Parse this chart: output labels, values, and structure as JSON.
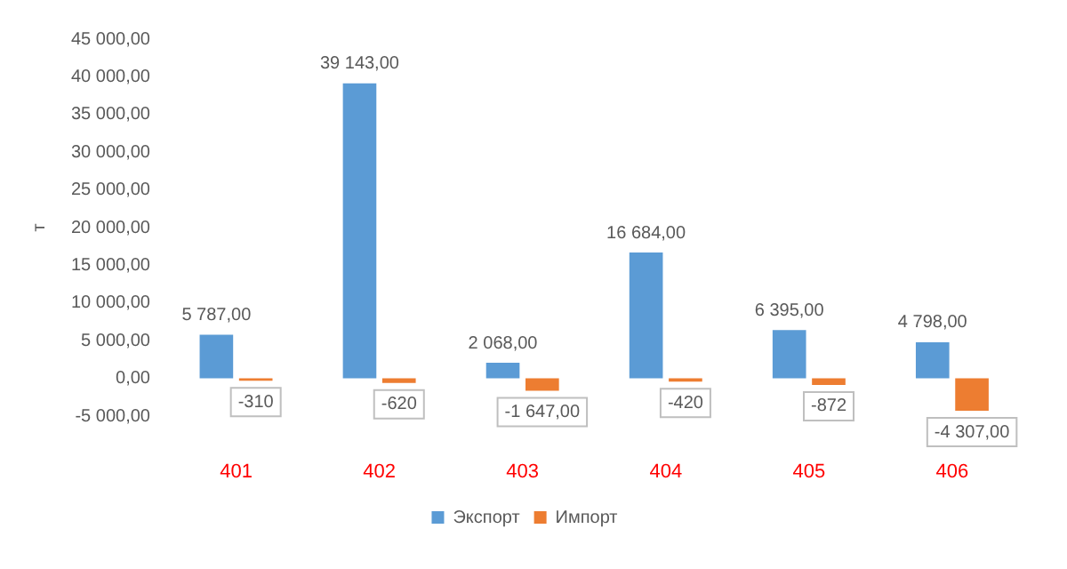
{
  "chart_data": {
    "type": "bar",
    "ylabel": "т",
    "categories": [
      "401",
      "402",
      "403",
      "404",
      "405",
      "406"
    ],
    "series": [
      {
        "name": "Экспорт",
        "color": "#5b9bd5",
        "values": [
          5787,
          39143,
          2068,
          16684,
          6395,
          4798
        ],
        "value_labels": [
          "5 787,00",
          "39 143,00",
          "2 068,00",
          "16 684,00",
          "6 395,00",
          "4 798,00"
        ]
      },
      {
        "name": "Импорт",
        "color": "#ed7d31",
        "values": [
          -310,
          -620,
          -1647,
          -420,
          -872,
          -4307
        ],
        "value_labels": [
          "-310",
          "-620",
          "-1 647,00",
          "-420",
          "-872",
          "-4 307,00"
        ]
      }
    ],
    "ylim": [
      -5000,
      45000
    ],
    "yticks": [
      {
        "value": -5000,
        "label": "-5 000,00"
      },
      {
        "value": 0,
        "label": "0,00"
      },
      {
        "value": 5000,
        "label": "5 000,00"
      },
      {
        "value": 10000,
        "label": "10 000,00"
      },
      {
        "value": 15000,
        "label": "15 000,00"
      },
      {
        "value": 20000,
        "label": "20 000,00"
      },
      {
        "value": 25000,
        "label": "25 000,00"
      },
      {
        "value": 30000,
        "label": "30 000,00"
      },
      {
        "value": 35000,
        "label": "35 000,00"
      },
      {
        "value": 40000,
        "label": "40 000,00"
      },
      {
        "value": 45000,
        "label": "45 000,00"
      }
    ],
    "grid": false,
    "legend": "bottom"
  }
}
